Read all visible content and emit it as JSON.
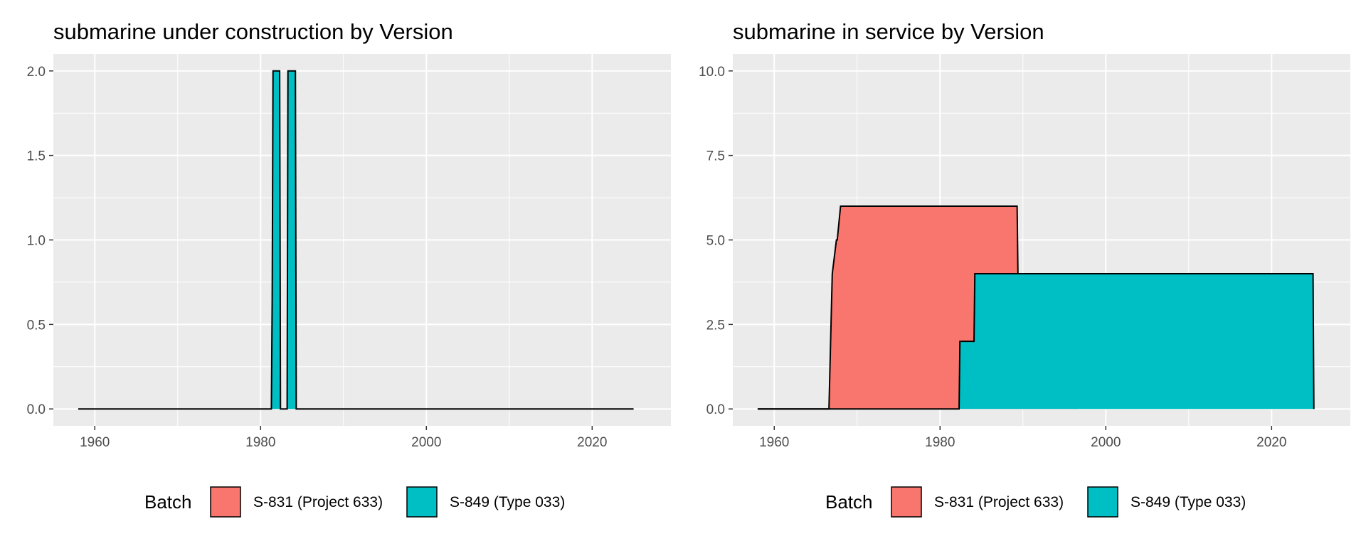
{
  "chart_data": [
    {
      "type": "area",
      "title": "submarine under construction by Version",
      "xlabel": "",
      "ylabel": "",
      "xlim": [
        1955,
        2029.5
      ],
      "ylim": [
        -0.1,
        2.1
      ],
      "x_ticks": [
        1960,
        1980,
        2000,
        2020
      ],
      "y_ticks": [
        0,
        0.5,
        1,
        1.5,
        2
      ],
      "x_tick_labels": [
        "1960",
        "1980",
        "2000",
        "2020"
      ],
      "y_tick_labels": [
        "0.0",
        "0.5",
        "1.0",
        "1.5",
        "2.0"
      ],
      "grid": true,
      "legend": {
        "title": "Batch",
        "position": "bottom",
        "entries": [
          {
            "label": "S-831 (Project 633)",
            "color": "#F8766D"
          },
          {
            "label": "S-849 (Type 033)",
            "color": "#00BFC4"
          }
        ]
      },
      "series": [
        {
          "batch": "S-849 (Type 033)",
          "color": "#00BFC4",
          "x": [
            1958,
            1981.3,
            1981.4,
            1981.5,
            1982.3,
            1982.4,
            1983.2,
            1983.3,
            1984.2,
            1984.3,
            2025
          ],
          "y": [
            0,
            0,
            0.65,
            2,
            2,
            0,
            0,
            2,
            2,
            0,
            0
          ]
        }
      ]
    },
    {
      "type": "area",
      "title": "submarine in service by Version",
      "xlabel": "",
      "ylabel": "",
      "xlim": [
        1955,
        2029.5
      ],
      "ylim": [
        -0.5,
        10.5
      ],
      "x_ticks": [
        1960,
        1980,
        2000,
        2020
      ],
      "y_ticks": [
        0,
        2.5,
        5,
        7.5,
        10
      ],
      "x_tick_labels": [
        "1960",
        "1980",
        "2000",
        "2020"
      ],
      "y_tick_labels": [
        "0.0",
        "2.5",
        "5.0",
        "7.5",
        "10.0"
      ],
      "grid": true,
      "stacked": true,
      "legend": {
        "title": "Batch",
        "position": "bottom",
        "entries": [
          {
            "label": "S-831 (Project 633)",
            "color": "#F8766D"
          },
          {
            "label": "S-849 (Type 033)",
            "color": "#00BFC4"
          }
        ]
      },
      "series": [
        {
          "batch": "S-831 (Project 633)",
          "color": "#F8766D",
          "x": [
            1958,
            1966.6,
            1966.7,
            1966.8,
            1967.0,
            1967.5,
            1967.6,
            1968.0,
            1982.3,
            1982.4,
            1984.1,
            1984.2,
            1989.3,
            1989.4,
            1996.3,
            1996.4
          ],
          "y": [
            0,
            0,
            1,
            2,
            4,
            5,
            5,
            6,
            6,
            6,
            6,
            6,
            6,
            4,
            4,
            0
          ]
        },
        {
          "batch": "S-849 (Type 033)",
          "color": "#00BFC4",
          "x": [
            1958,
            1982.3,
            1982.4,
            1984.1,
            1984.2,
            2025,
            2025.1
          ],
          "y": [
            0,
            0,
            2,
            2,
            4,
            4,
            0
          ]
        }
      ]
    }
  ]
}
